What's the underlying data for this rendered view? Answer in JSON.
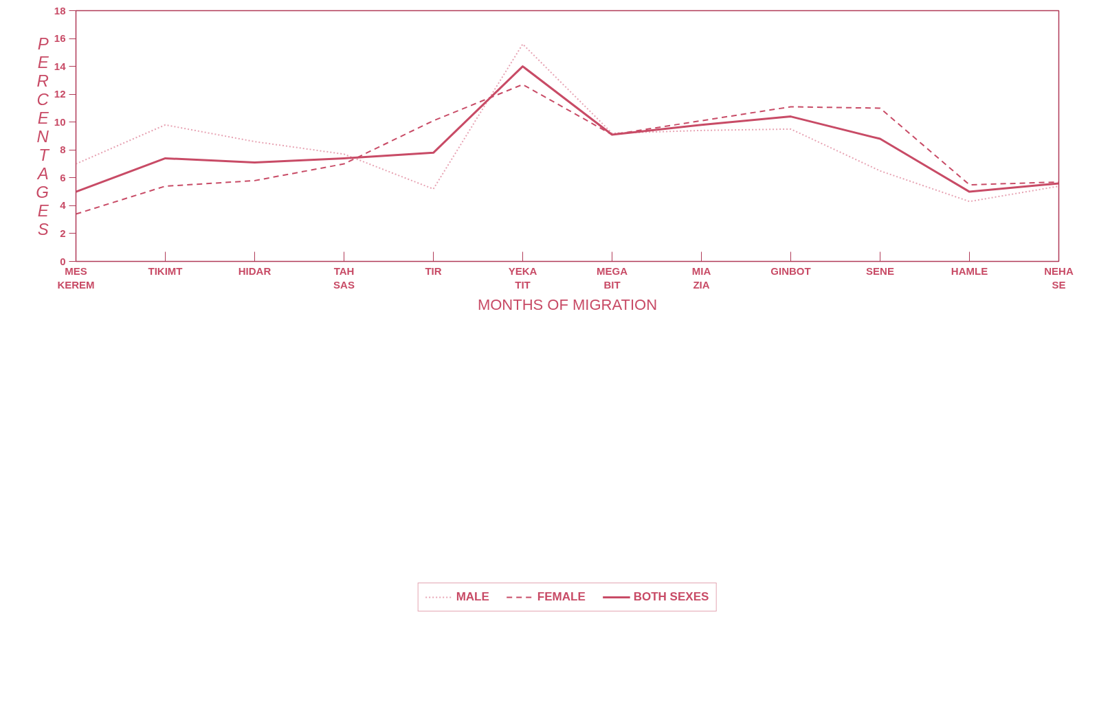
{
  "chart_data": {
    "type": "line",
    "xlabel": "MONTHS OF MIGRATION",
    "ylabel": "PERCENTAGES",
    "categories": [
      "MES\nKEREM",
      "TIKIMT",
      "HIDAR",
      "TAH\nSAS",
      "TIR",
      "YEKA\nTIT",
      "MEGA\nBIT",
      "MIA\nZIA",
      "GINBOT",
      "SENE",
      "HAMLE",
      "NEHA\nSE"
    ],
    "series": [
      {
        "name": "MALE",
        "color": "#e7a3b3",
        "line_style": "dotted",
        "values": [
          7.0,
          9.8,
          8.6,
          7.7,
          5.2,
          15.6,
          9.2,
          9.4,
          9.5,
          6.5,
          4.3,
          5.4
        ]
      },
      {
        "name": "FEMALE",
        "color": "#c84b66",
        "line_style": "dashed",
        "values": [
          3.4,
          5.4,
          5.8,
          7.0,
          10.1,
          12.7,
          9.1,
          10.1,
          11.1,
          11.0,
          5.5,
          5.7
        ]
      },
      {
        "name": "BOTH SEXES",
        "color": "#c84b66",
        "line_style": "solid",
        "values": [
          5.0,
          7.4,
          7.1,
          7.4,
          7.8,
          14.0,
          9.1,
          9.8,
          10.4,
          8.8,
          5.0,
          5.6
        ]
      }
    ],
    "ylim": [
      0,
      18
    ],
    "yticks": [
      0,
      2,
      4,
      6,
      8,
      10,
      12,
      14,
      16,
      18
    ],
    "grid": false,
    "legend": "bottom",
    "marker": "none"
  }
}
